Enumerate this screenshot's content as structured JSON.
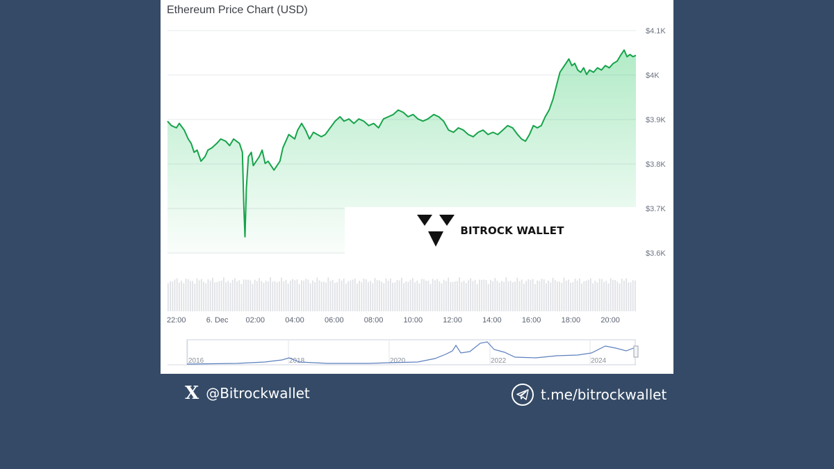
{
  "card": {
    "title": "Ethereum Price Chart (USD)"
  },
  "chart_data": {
    "type": "area",
    "title": "Ethereum Price Chart (USD)",
    "currency": "USD",
    "line_color": "#16a34a",
    "fill_color": "#22c55e",
    "ylim": [
      3600,
      4100
    ],
    "yticks": [
      {
        "value": 4100,
        "label": "$4.1K"
      },
      {
        "value": 4000,
        "label": "$4K"
      },
      {
        "value": 3900,
        "label": "$3.9K"
      },
      {
        "value": 3800,
        "label": "$3.8K"
      },
      {
        "value": 3700,
        "label": "$3.7K"
      },
      {
        "value": 3600,
        "label": "$3.6K"
      }
    ],
    "x_hours_range": [
      22.0,
      45.75
    ],
    "xticks": [
      {
        "h": 22,
        "label": "22:00"
      },
      {
        "h": 24,
        "label": "6. Dec"
      },
      {
        "h": 26,
        "label": "02:00"
      },
      {
        "h": 28,
        "label": "04:00"
      },
      {
        "h": 30,
        "label": "06:00"
      },
      {
        "h": 32,
        "label": "08:00"
      },
      {
        "h": 34,
        "label": "10:00"
      },
      {
        "h": 36,
        "label": "12:00"
      },
      {
        "h": 38,
        "label": "14:00"
      },
      {
        "h": 40,
        "label": "16:00"
      },
      {
        "h": 42,
        "label": "18:00"
      },
      {
        "h": 44,
        "label": "20:00"
      }
    ],
    "series": [
      {
        "points": [
          [
            22.0,
            3890
          ],
          [
            22.2,
            3880
          ],
          [
            22.45,
            3875
          ],
          [
            22.6,
            3885
          ],
          [
            22.85,
            3870
          ],
          [
            23.05,
            3850
          ],
          [
            23.2,
            3840
          ],
          [
            23.35,
            3820
          ],
          [
            23.5,
            3825
          ],
          [
            23.7,
            3800
          ],
          [
            23.9,
            3810
          ],
          [
            24.05,
            3825
          ],
          [
            24.25,
            3830
          ],
          [
            24.5,
            3840
          ],
          [
            24.7,
            3850
          ],
          [
            24.95,
            3845
          ],
          [
            25.15,
            3835
          ],
          [
            25.35,
            3850
          ],
          [
            25.5,
            3845
          ],
          [
            25.65,
            3840
          ],
          [
            25.8,
            3820
          ],
          [
            25.87,
            3700
          ],
          [
            25.93,
            3630
          ],
          [
            26.0,
            3740
          ],
          [
            26.1,
            3810
          ],
          [
            26.25,
            3820
          ],
          [
            26.35,
            3790
          ],
          [
            26.5,
            3800
          ],
          [
            26.65,
            3810
          ],
          [
            26.8,
            3825
          ],
          [
            26.95,
            3795
          ],
          [
            27.1,
            3800
          ],
          [
            27.25,
            3790
          ],
          [
            27.4,
            3780
          ],
          [
            27.55,
            3790
          ],
          [
            27.7,
            3800
          ],
          [
            27.85,
            3830
          ],
          [
            28.0,
            3845
          ],
          [
            28.15,
            3860
          ],
          [
            28.3,
            3855
          ],
          [
            28.45,
            3850
          ],
          [
            28.6,
            3870
          ],
          [
            28.8,
            3885
          ],
          [
            29.0,
            3870
          ],
          [
            29.2,
            3850
          ],
          [
            29.4,
            3865
          ],
          [
            29.6,
            3860
          ],
          [
            29.8,
            3855
          ],
          [
            30.0,
            3860
          ],
          [
            30.25,
            3875
          ],
          [
            30.5,
            3890
          ],
          [
            30.75,
            3900
          ],
          [
            30.95,
            3890
          ],
          [
            31.2,
            3895
          ],
          [
            31.45,
            3885
          ],
          [
            31.7,
            3895
          ],
          [
            31.95,
            3890
          ],
          [
            32.2,
            3880
          ],
          [
            32.45,
            3885
          ],
          [
            32.7,
            3875
          ],
          [
            32.95,
            3895
          ],
          [
            33.2,
            3900
          ],
          [
            33.45,
            3905
          ],
          [
            33.7,
            3915
          ],
          [
            33.95,
            3910
          ],
          [
            34.2,
            3900
          ],
          [
            34.45,
            3905
          ],
          [
            34.7,
            3895
          ],
          [
            34.95,
            3890
          ],
          [
            35.2,
            3895
          ],
          [
            35.5,
            3905
          ],
          [
            35.75,
            3900
          ],
          [
            36.0,
            3890
          ],
          [
            36.25,
            3870
          ],
          [
            36.5,
            3865
          ],
          [
            36.75,
            3875
          ],
          [
            37.0,
            3870
          ],
          [
            37.25,
            3860
          ],
          [
            37.5,
            3855
          ],
          [
            37.75,
            3865
          ],
          [
            38.0,
            3870
          ],
          [
            38.25,
            3860
          ],
          [
            38.5,
            3865
          ],
          [
            38.75,
            3860
          ],
          [
            39.0,
            3870
          ],
          [
            39.25,
            3880
          ],
          [
            39.5,
            3875
          ],
          [
            39.75,
            3860
          ],
          [
            39.95,
            3850
          ],
          [
            40.15,
            3845
          ],
          [
            40.35,
            3860
          ],
          [
            40.55,
            3880
          ],
          [
            40.75,
            3875
          ],
          [
            40.95,
            3880
          ],
          [
            41.15,
            3900
          ],
          [
            41.35,
            3915
          ],
          [
            41.55,
            3940
          ],
          [
            41.75,
            3975
          ],
          [
            41.9,
            4000
          ],
          [
            42.05,
            4010
          ],
          [
            42.2,
            4020
          ],
          [
            42.35,
            4030
          ],
          [
            42.5,
            4015
          ],
          [
            42.65,
            4020
          ],
          [
            42.8,
            4005
          ],
          [
            42.95,
            4000
          ],
          [
            43.1,
            4010
          ],
          [
            43.25,
            3995
          ],
          [
            43.4,
            4005
          ],
          [
            43.6,
            4000
          ],
          [
            43.8,
            4010
          ],
          [
            44.0,
            4005
          ],
          [
            44.2,
            4015
          ],
          [
            44.4,
            4010
          ],
          [
            44.6,
            4020
          ],
          [
            44.8,
            4025
          ],
          [
            45.0,
            4040
          ],
          [
            45.15,
            4050
          ],
          [
            45.3,
            4035
          ],
          [
            45.45,
            4040
          ],
          [
            45.6,
            4035
          ],
          [
            45.75,
            4038
          ]
        ]
      }
    ],
    "navigator": {
      "year_ticks": [
        "2016",
        "2018",
        "2020",
        "2022",
        "2024"
      ]
    }
  },
  "watermark": {
    "text": "BITROCK WALLET",
    "logo_icon": "bitrock-triangles-icon"
  },
  "footer": {
    "x_handle": "@Bitrockwallet",
    "x_icon": "x-logo-icon",
    "x_glyph": "X",
    "telegram_link": "t.me/bitrockwallet",
    "telegram_icon": "telegram-icon"
  }
}
